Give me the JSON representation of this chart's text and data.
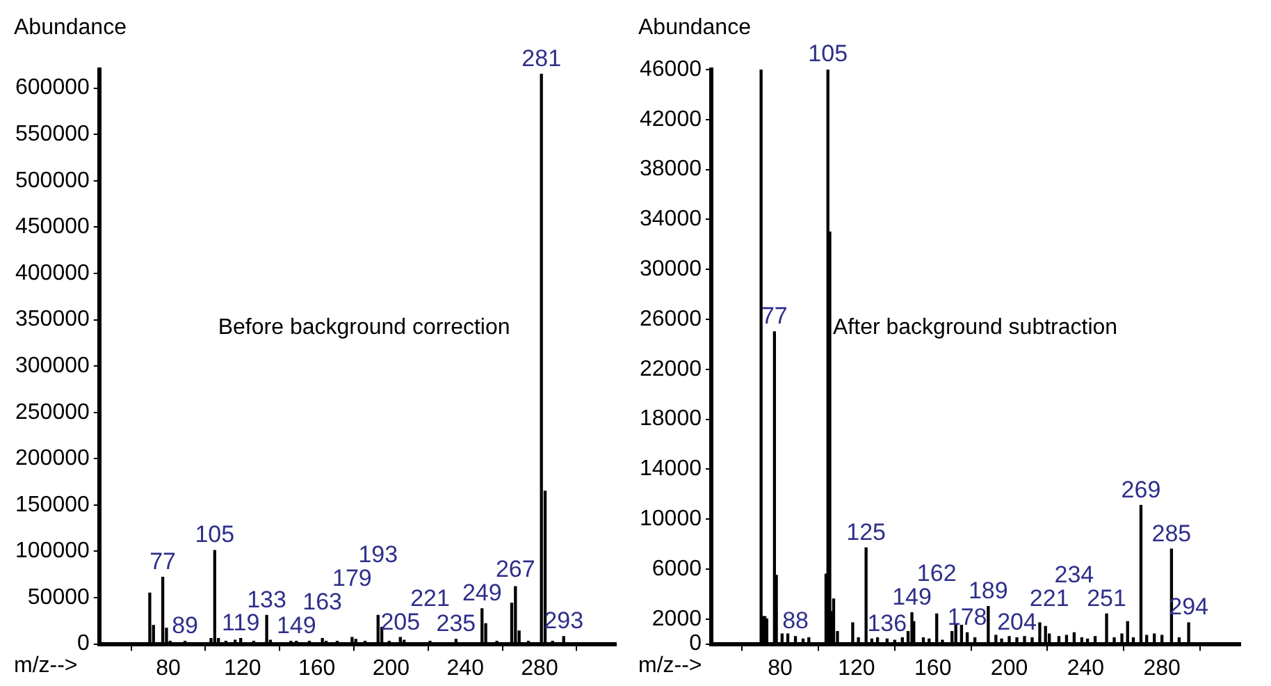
{
  "chart_data": [
    {
      "type": "bar",
      "ylabel": "Abundance",
      "xlabel": "m/z-->",
      "annotations": [
        "Before background correction",
        {
          "text": "77",
          "x": 77,
          "y": 72000
        },
        {
          "text": "89",
          "x": 89,
          "y": 3000
        },
        {
          "text": "105",
          "x": 105,
          "y": 101000
        },
        {
          "text": "119",
          "x": 119,
          "y": 6000
        },
        {
          "text": "133",
          "x": 133,
          "y": 31000
        },
        {
          "text": "149",
          "x": 149,
          "y": 3000
        },
        {
          "text": "163",
          "x": 163,
          "y": 6000
        },
        {
          "text": "179",
          "x": 179,
          "y": 7000
        },
        {
          "text": "193",
          "x": 193,
          "y": 31000
        },
        {
          "text": "205",
          "x": 205,
          "y": 7000
        },
        {
          "text": "221",
          "x": 221,
          "y": 3000
        },
        {
          "text": "235",
          "x": 235,
          "y": 5000
        },
        {
          "text": "249",
          "x": 249,
          "y": 38000
        },
        {
          "text": "267",
          "x": 267,
          "y": 62000
        },
        {
          "text": "281",
          "x": 281,
          "y": 615000
        },
        {
          "text": "293",
          "x": 293,
          "y": 8000
        }
      ],
      "x": [
        70,
        72,
        77,
        79,
        81,
        89,
        103,
        105,
        107,
        111,
        116,
        119,
        126,
        133,
        135,
        146,
        149,
        156,
        163,
        165,
        171,
        179,
        181,
        186,
        193,
        195,
        199,
        205,
        207,
        221,
        235,
        249,
        251,
        257,
        265,
        267,
        269,
        274,
        281,
        283,
        287,
        293
      ],
      "series": [
        {
          "color": "#000000",
          "values": [
            55000,
            20000,
            72000,
            17000,
            3000,
            3000,
            6000,
            101000,
            6000,
            3000,
            4000,
            6000,
            3000,
            31000,
            4000,
            3000,
            3000,
            3000,
            6000,
            3000,
            3000,
            7000,
            5000,
            3000,
            31000,
            18000,
            3000,
            7000,
            4000,
            3000,
            5000,
            38000,
            22000,
            3000,
            44000,
            62000,
            14000,
            3000,
            615000,
            165000,
            3000,
            8000
          ]
        }
      ],
      "xlim": [
        66,
        298
      ],
      "xticks": [
        80,
        120,
        160,
        200,
        240,
        280
      ],
      "ylim": [
        0,
        620000
      ],
      "yticks": [
        0,
        50000,
        100000,
        150000,
        200000,
        250000,
        300000,
        350000,
        400000,
        450000,
        500000,
        550000,
        600000
      ]
    },
    {
      "type": "bar",
      "ylabel": "Abundance",
      "xlabel": "m/z-->",
      "annotations": [
        "After background subtraction",
        {
          "text": "77",
          "x": 77,
          "y": 25000
        },
        {
          "text": "88",
          "x": 88,
          "y": 600
        },
        {
          "text": "105",
          "x": 105,
          "y": 46000
        },
        {
          "text": "125",
          "x": 125,
          "y": 7700
        },
        {
          "text": "136",
          "x": 136,
          "y": 400
        },
        {
          "text": "149",
          "x": 149,
          "y": 2500
        },
        {
          "text": "162",
          "x": 162,
          "y": 2400
        },
        {
          "text": "178",
          "x": 178,
          "y": 900
        },
        {
          "text": "189",
          "x": 189,
          "y": 3000
        },
        {
          "text": "204",
          "x": 204,
          "y": 500
        },
        {
          "text": "221",
          "x": 221,
          "y": 800
        },
        {
          "text": "234",
          "x": 234,
          "y": 900
        },
        {
          "text": "251",
          "x": 251,
          "y": 2400
        },
        {
          "text": "269",
          "x": 269,
          "y": 11100
        },
        {
          "text": "285",
          "x": 285,
          "y": 7600
        },
        {
          "text": "294",
          "x": 294,
          "y": 1700
        }
      ],
      "x": [
        70,
        71,
        72,
        73,
        77,
        78,
        81,
        84,
        88,
        92,
        95,
        104,
        105,
        106,
        107,
        108,
        110,
        118,
        121,
        125,
        128,
        131,
        136,
        140,
        144,
        147,
        149,
        150,
        155,
        158,
        162,
        165,
        170,
        172,
        175,
        178,
        182,
        189,
        193,
        196,
        200,
        204,
        208,
        212,
        216,
        219,
        221,
        226,
        230,
        234,
        238,
        241,
        245,
        251,
        255,
        259,
        262,
        265,
        269,
        272,
        276,
        280,
        285,
        289,
        294
      ],
      "series": [
        {
          "color": "#000000",
          "values": [
            46000,
            2200,
            2200,
            2000,
            25000,
            5500,
            800,
            800,
            600,
            400,
            500,
            5600,
            46000,
            33000,
            2600,
            3600,
            1000,
            1700,
            500,
            7700,
            400,
            500,
            400,
            300,
            500,
            1000,
            2500,
            1800,
            500,
            400,
            2400,
            300,
            1000,
            1500,
            1500,
            900,
            500,
            3000,
            700,
            400,
            600,
            500,
            600,
            500,
            1700,
            1400,
            800,
            600,
            700,
            900,
            500,
            400,
            600,
            2400,
            500,
            800,
            1800,
            500,
            11100,
            700,
            800,
            700,
            7600,
            500,
            1700
          ]
        }
      ],
      "xlim": [
        67,
        298
      ],
      "xticks": [
        80,
        120,
        160,
        200,
        240,
        280
      ],
      "ylim": [
        0,
        46000
      ],
      "yticks": [
        0,
        2000,
        6000,
        10000,
        14000,
        18000,
        22000,
        26000,
        30000,
        34000,
        38000,
        42000,
        46000
      ]
    }
  ]
}
